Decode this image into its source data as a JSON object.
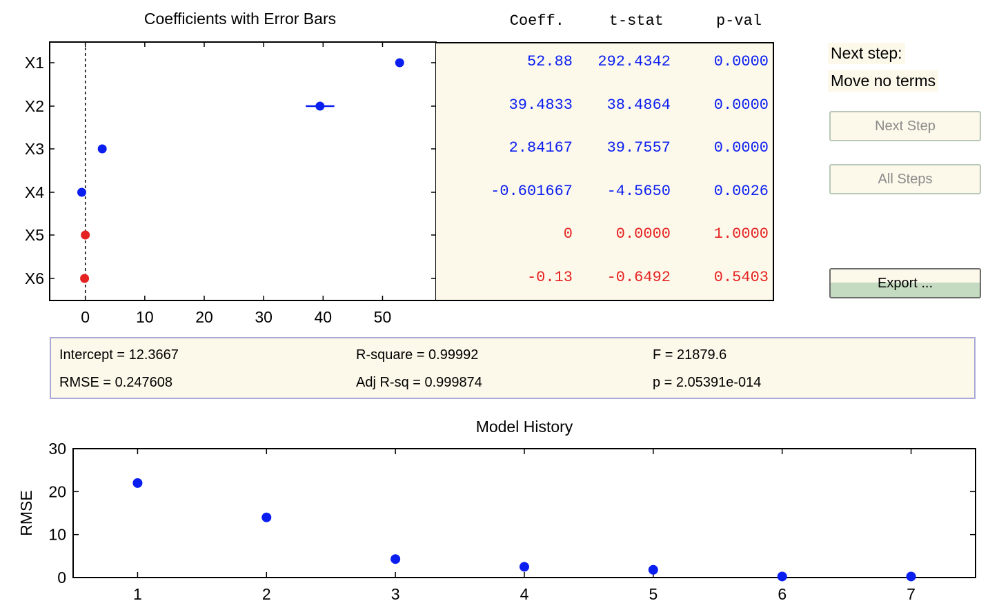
{
  "coef_panel": {
    "title": "Coefficients with Error Bars",
    "columns": [
      "Coeff.",
      "t-stat",
      "p-val"
    ],
    "rows": [
      {
        "term": "X1",
        "coeff": "52.88",
        "tstat": "292.4342",
        "pval": "0.0000",
        "in_model": true
      },
      {
        "term": "X2",
        "coeff": "39.4833",
        "tstat": "38.4864",
        "pval": "0.0000",
        "in_model": true
      },
      {
        "term": "X3",
        "coeff": "2.84167",
        "tstat": "39.7557",
        "pval": "0.0000",
        "in_model": true
      },
      {
        "term": "X4",
        "coeff": "-0.601667",
        "tstat": "-4.5650",
        "pval": "0.0026",
        "in_model": true
      },
      {
        "term": "X5",
        "coeff": "0",
        "tstat": "0.0000",
        "pval": "1.0000",
        "in_model": false
      },
      {
        "term": "X6",
        "coeff": "-0.13",
        "tstat": "-0.6492",
        "pval": "0.5403",
        "in_model": false
      }
    ],
    "colors": {
      "in_model": "#0a1ef0",
      "out_model": "#e52222"
    }
  },
  "next_step": {
    "label": "Next step:",
    "value": "Move no terms"
  },
  "buttons": {
    "next_step": "Next Step",
    "all_steps": "All Steps",
    "export": "Export ..."
  },
  "stats": {
    "intercept": "Intercept = 12.3667",
    "rmse": "RMSE = 0.247608",
    "rsquare": "R-square = 0.99992",
    "adj_rsq": "Adj R-sq = 0.999874",
    "f": "F = 21879.6",
    "p": "p = 2.05391e-014"
  },
  "history_title": "Model History",
  "chart_data": [
    {
      "type": "scatter",
      "title": "Coefficients with Error Bars",
      "xlabel": "",
      "ylabel": "",
      "xlim": [
        -6,
        59
      ],
      "x_ticks": [
        0,
        10,
        20,
        30,
        40,
        50
      ],
      "categories": [
        "X1",
        "X2",
        "X3",
        "X4",
        "X5",
        "X6"
      ],
      "values": [
        52.88,
        39.4833,
        2.84167,
        -0.601667,
        0,
        -0.13
      ],
      "error_halfwidth": [
        0.35,
        2.4,
        0.15,
        0.3,
        0.45,
        0.45
      ],
      "zero_line": true,
      "grid": false
    },
    {
      "type": "scatter",
      "title": "Model History",
      "xlabel": "",
      "ylabel": "RMSE",
      "xlim": [
        0.5,
        7.5
      ],
      "ylim": [
        0,
        30
      ],
      "x_ticks": [
        1,
        2,
        3,
        4,
        5,
        6,
        7
      ],
      "y_ticks": [
        0,
        10,
        20,
        30
      ],
      "x": [
        1,
        2,
        3,
        4,
        5,
        6,
        7
      ],
      "values": [
        22,
        14,
        4.3,
        2.5,
        1.8,
        0.25,
        0.25
      ],
      "grid": false
    }
  ]
}
